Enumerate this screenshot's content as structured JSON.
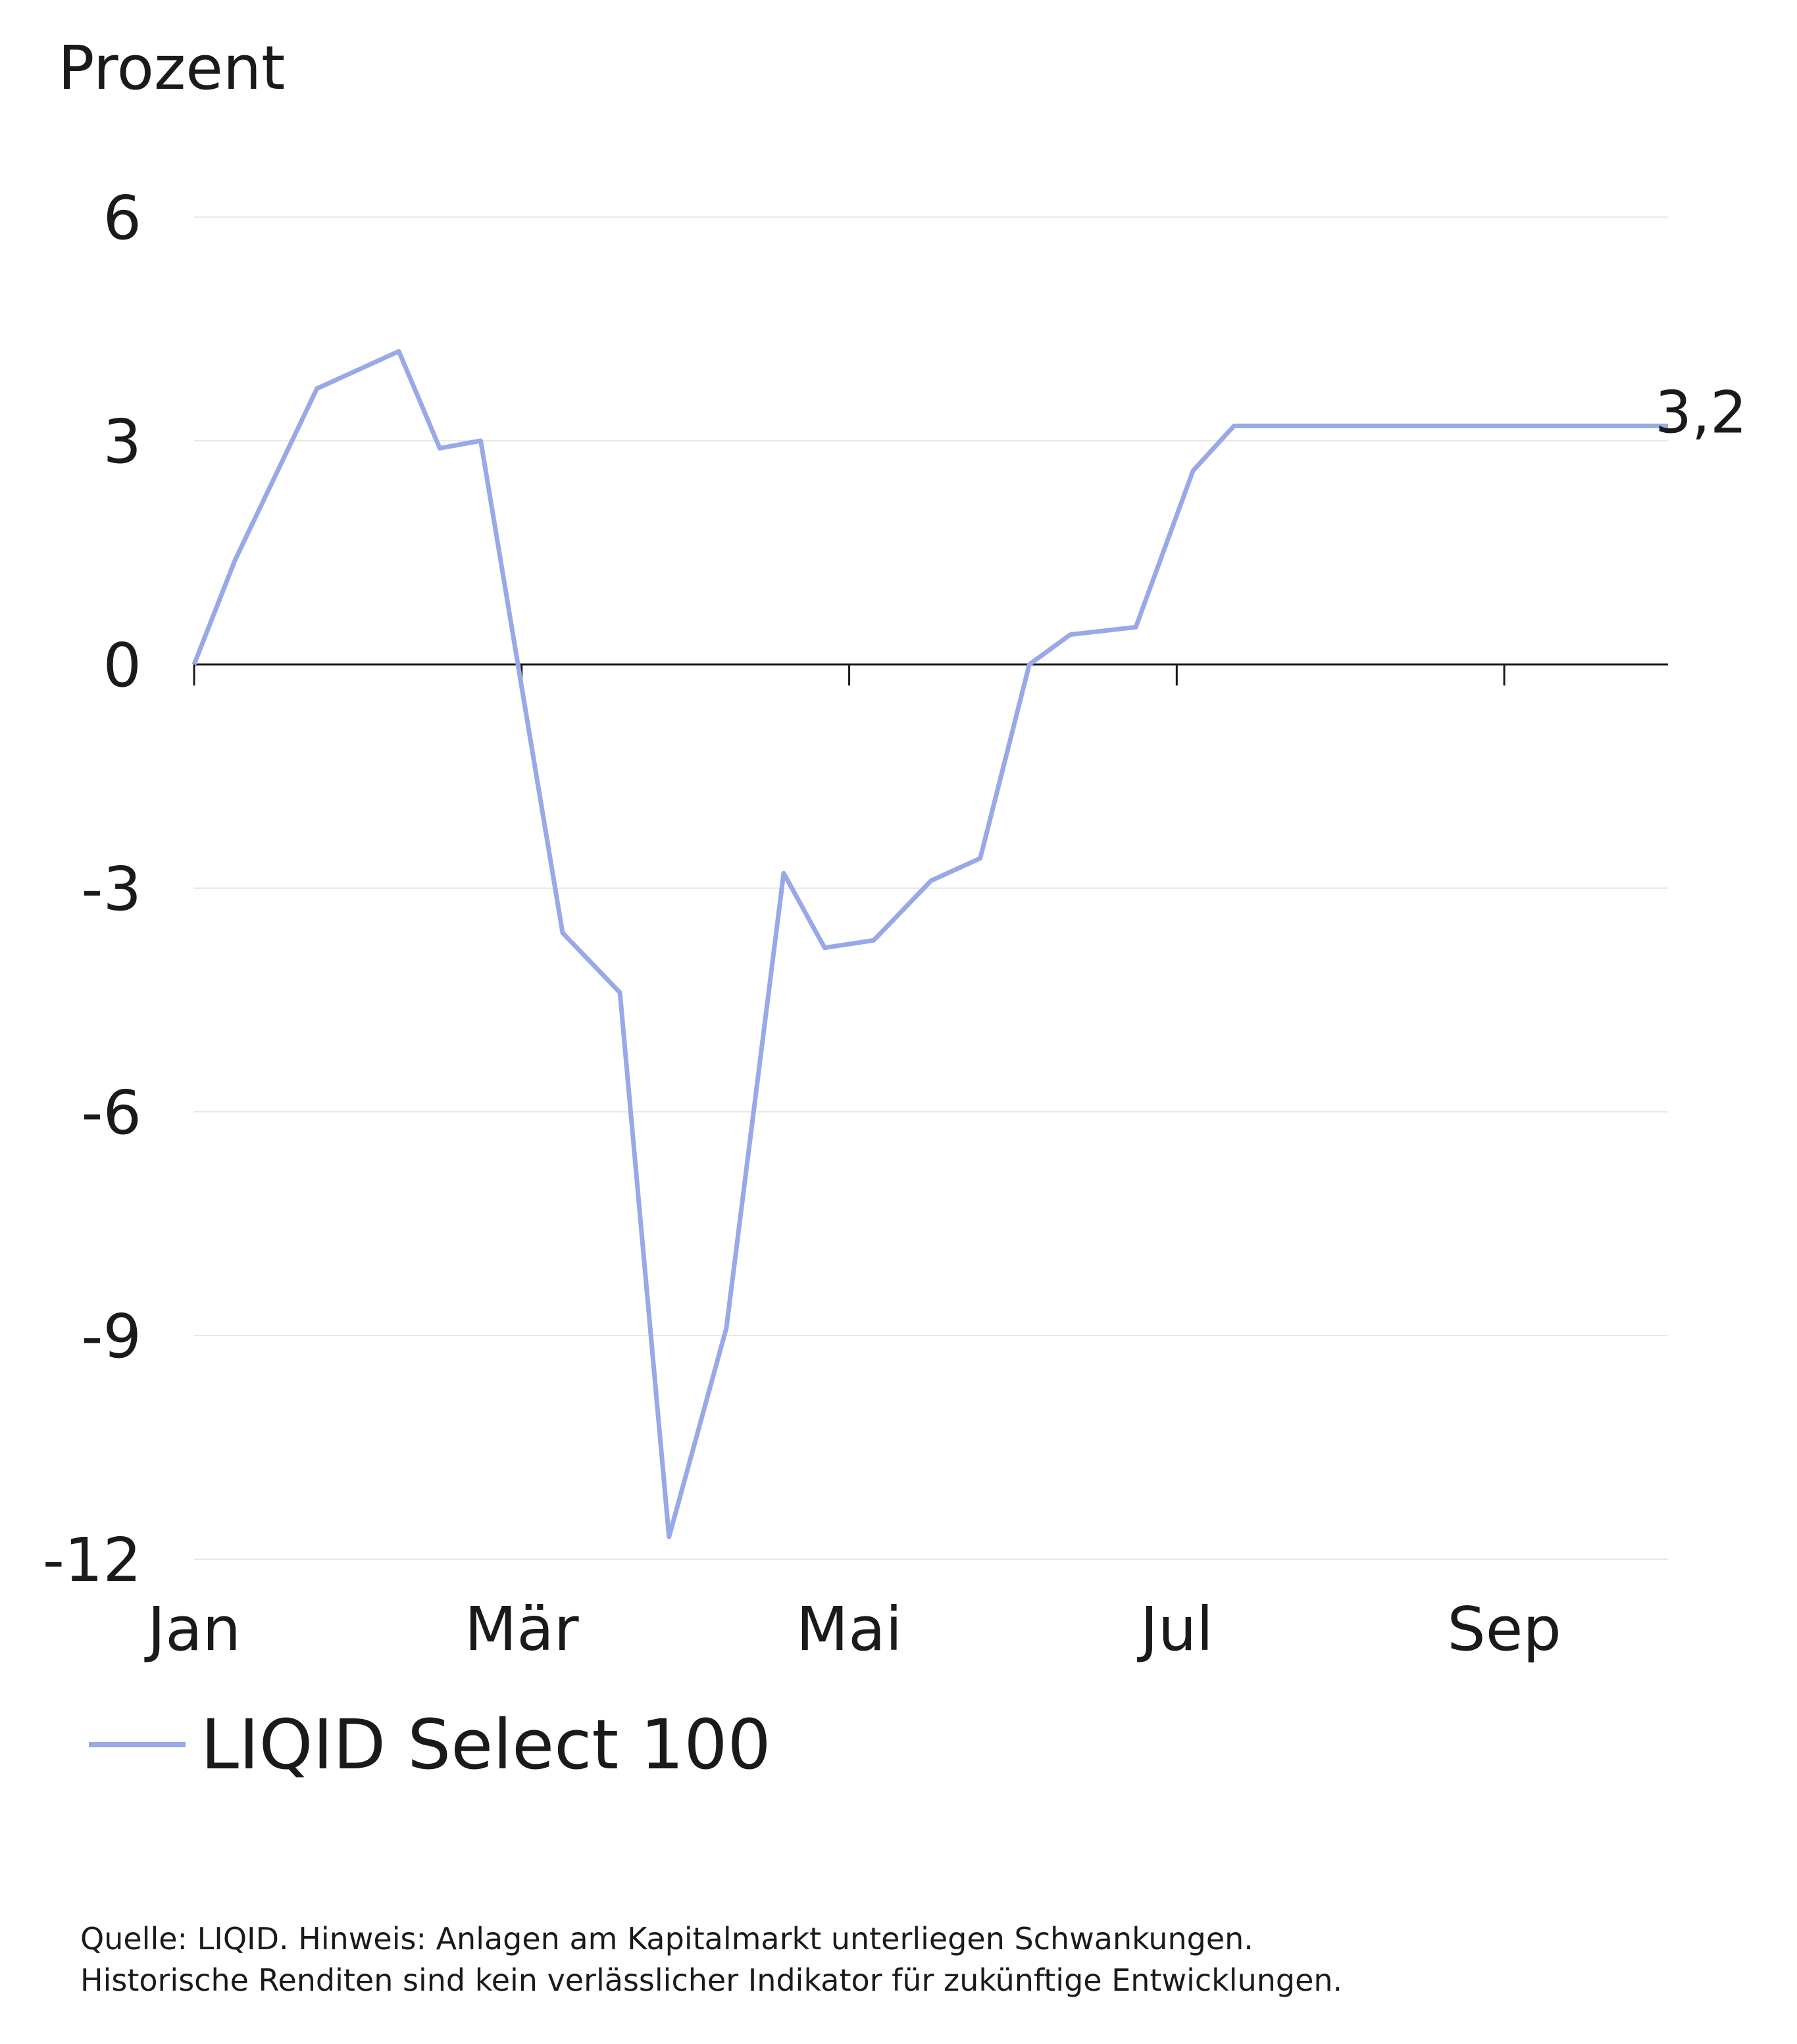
{
  "chart_data": {
    "type": "line",
    "unit_label": "Prozent",
    "categories": [
      "Jan",
      "Mär",
      "Mai",
      "Jul",
      "Sep"
    ],
    "x": [
      0,
      0.5,
      1.5,
      2.5,
      3,
      3.5,
      4.5,
      5.2,
      5.8,
      6.5,
      7.2,
      7.7,
      8.3,
      9.0,
      9.6,
      10.2,
      10.7,
      11.5,
      12.2,
      12.7,
      13.4,
      14.3,
      14.8,
      15.7,
      16.6,
      17.3,
      18.0
    ],
    "series": [
      {
        "name": "LIQID Select 100",
        "values": [
          0,
          1.4,
          3.7,
          4.2,
          2.9,
          3.0,
          -3.6,
          -4.4,
          -11.7,
          -8.9,
          -2.8,
          -3.8,
          -3.7,
          -2.9,
          -2.6,
          0.0,
          0.4,
          0.5,
          2.6,
          3.2,
          3.2,
          3.2,
          3.2,
          3.2,
          3.2,
          3.2,
          3.2
        ],
        "color": "#99a8e6"
      }
    ],
    "yticks": [
      6,
      3,
      0,
      -3,
      -6,
      -9,
      -12
    ],
    "ylim": [
      -12,
      6
    ],
    "end_value_label": "3,2",
    "grid": true,
    "legend": "bottom-left"
  },
  "footnote": {
    "line1": "Quelle: LIQID. Hinweis: Anlagen am Kapitalmarkt unterliegen Schwankungen.",
    "line2": "Historische Renditen sind kein verlässlicher Indikator für zukünftige Entwicklungen."
  },
  "colors": {
    "series": "#99a8e6",
    "axis": "#1a1a1a",
    "grid": "#e8e8e8"
  }
}
